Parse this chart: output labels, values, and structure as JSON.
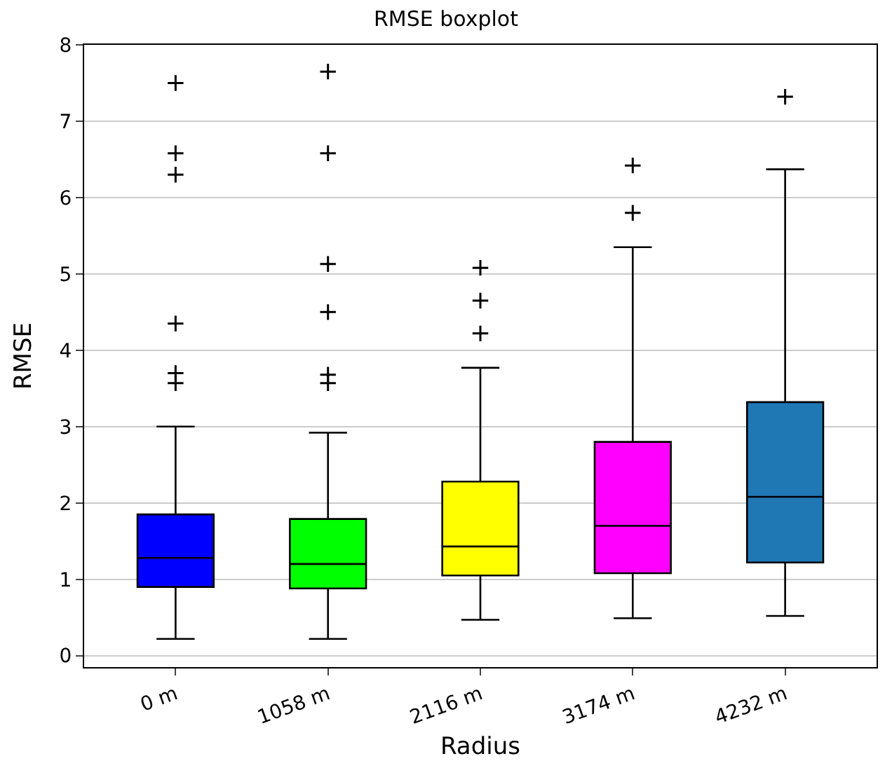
{
  "chart_data": {
    "type": "box",
    "title": "RMSE boxplot",
    "xlabel": "Radius",
    "ylabel": "RMSE",
    "categories": [
      "0 m",
      "1058 m",
      "2116 m",
      "3174 m",
      "4232 m"
    ],
    "colors": [
      "#0000ff",
      "#00ff00",
      "#ffff00",
      "#ff00ff",
      "#1f77b4"
    ],
    "boxes": [
      {
        "low": 0.22,
        "q1": 0.9,
        "median": 1.28,
        "q3": 1.85,
        "high": 3.0,
        "outliers": [
          7.5,
          6.58,
          6.3,
          4.35,
          3.7,
          3.57
        ]
      },
      {
        "low": 0.22,
        "q1": 0.88,
        "median": 1.2,
        "q3": 1.79,
        "high": 2.92,
        "outliers": [
          7.65,
          6.58,
          5.13,
          4.5,
          3.68,
          3.57
        ]
      },
      {
        "low": 0.47,
        "q1": 1.05,
        "median": 1.43,
        "q3": 2.28,
        "high": 3.77,
        "outliers": [
          5.08,
          4.65,
          4.22
        ]
      },
      {
        "low": 0.49,
        "q1": 1.08,
        "median": 1.7,
        "q3": 2.8,
        "high": 5.35,
        "outliers": [
          6.42,
          5.8
        ]
      },
      {
        "low": 0.52,
        "q1": 1.22,
        "median": 2.08,
        "q3": 3.32,
        "high": 6.37,
        "outliers": [
          7.32
        ]
      }
    ],
    "ylim": [
      -0.15,
      8
    ],
    "yticks": [
      0,
      1,
      2,
      3,
      4,
      5,
      6,
      7,
      8
    ],
    "grid": "y",
    "marker": "cross"
  }
}
